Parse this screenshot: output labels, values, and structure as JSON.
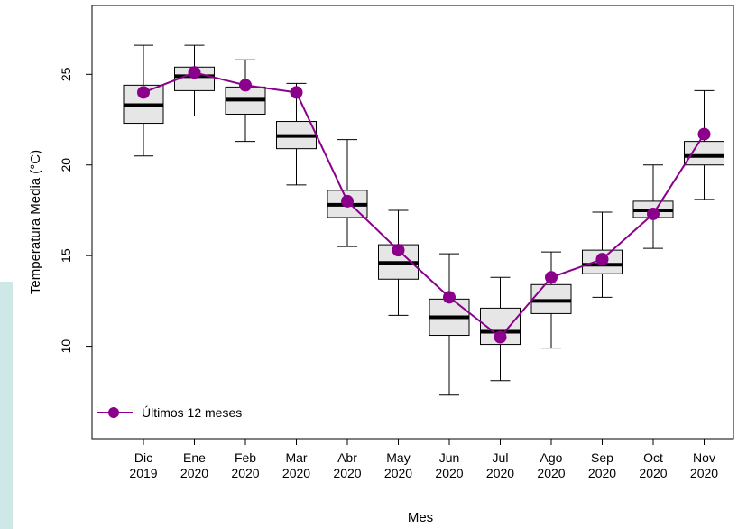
{
  "chart_data": {
    "type": "box",
    "xlabel": "Mes",
    "ylabel": "Temperatura Media (°C)",
    "ylim": [
      4.9,
      28.8
    ],
    "y_ticks": [
      10,
      15,
      20,
      25
    ],
    "grid": false,
    "categories": [
      [
        "Dic",
        "2019"
      ],
      [
        "Ene",
        "2020"
      ],
      [
        "Feb",
        "2020"
      ],
      [
        "Mar",
        "2020"
      ],
      [
        "Abr",
        "2020"
      ],
      [
        "May",
        "2020"
      ],
      [
        "Jun",
        "2020"
      ],
      [
        "Jul",
        "2020"
      ],
      [
        "Ago",
        "2020"
      ],
      [
        "Sep",
        "2020"
      ],
      [
        "Oct",
        "2020"
      ],
      [
        "Nov",
        "2020"
      ]
    ],
    "boxes": [
      {
        "min": 20.5,
        "q1": 22.3,
        "median": 23.3,
        "q3": 24.4,
        "max": 26.6
      },
      {
        "min": 22.7,
        "q1": 24.1,
        "median": 24.9,
        "q3": 25.4,
        "max": 26.6
      },
      {
        "min": 21.3,
        "q1": 22.8,
        "median": 23.6,
        "q3": 24.3,
        "max": 25.8
      },
      {
        "min": 18.9,
        "q1": 20.9,
        "median": 21.6,
        "q3": 22.4,
        "max": 24.5
      },
      {
        "min": 15.5,
        "q1": 17.1,
        "median": 17.8,
        "q3": 18.6,
        "max": 21.4
      },
      {
        "min": 11.7,
        "q1": 13.7,
        "median": 14.6,
        "q3": 15.6,
        "max": 17.5
      },
      {
        "min": 7.3,
        "q1": 10.6,
        "median": 11.6,
        "q3": 12.6,
        "max": 15.1
      },
      {
        "min": 8.1,
        "q1": 10.1,
        "median": 10.8,
        "q3": 12.1,
        "max": 13.8
      },
      {
        "min": 9.9,
        "q1": 11.8,
        "median": 12.5,
        "q3": 13.4,
        "max": 15.2
      },
      {
        "min": 12.7,
        "q1": 14.0,
        "median": 14.5,
        "q3": 15.3,
        "max": 17.4
      },
      {
        "min": 15.4,
        "q1": 17.1,
        "median": 17.5,
        "q3": 18.0,
        "max": 20.0
      },
      {
        "min": 18.1,
        "q1": 20.0,
        "median": 20.5,
        "q3": 21.3,
        "max": 24.1
      }
    ],
    "series": [
      {
        "name": "Últimos 12 meses",
        "values": [
          24.0,
          25.1,
          24.4,
          24.0,
          18.0,
          15.3,
          12.7,
          10.5,
          13.8,
          14.8,
          17.3,
          21.7
        ]
      }
    ],
    "legend_position": "bottom-left",
    "colors": {
      "box_fill": "#e6e6e6",
      "line": "#8b008b",
      "axis": "#000000",
      "background": "#ffffff"
    }
  }
}
